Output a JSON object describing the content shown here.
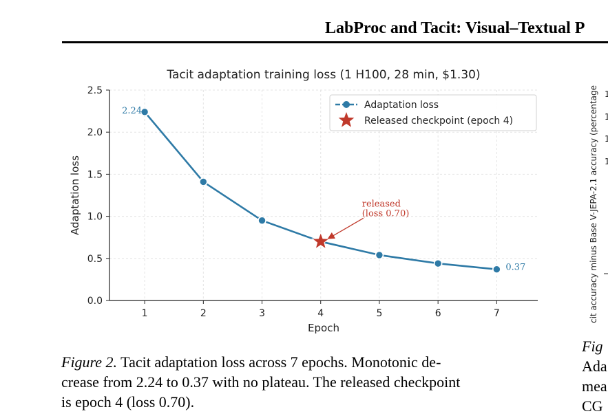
{
  "header": {
    "running_title": "LabProc and Tacit: Visual–Textual P"
  },
  "chart_data": {
    "type": "line",
    "title": "Tacit adaptation training loss (1 H100, 28 min, $1.30)",
    "xlabel": "Epoch",
    "ylabel": "Adaptation loss",
    "x": [
      1,
      2,
      3,
      4,
      5,
      6,
      7
    ],
    "xlim": [
      0.4,
      7.7
    ],
    "ylim": [
      0.0,
      2.5
    ],
    "xticks": [
      "1",
      "2",
      "3",
      "4",
      "5",
      "6",
      "7"
    ],
    "yticks": [
      "0.0",
      "0.5",
      "1.0",
      "1.5",
      "2.0",
      "2.5"
    ],
    "ytick_values": [
      0.0,
      0.5,
      1.0,
      1.5,
      2.0,
      2.5
    ],
    "grid": true,
    "legend_position": "top-right",
    "series": [
      {
        "name": "Adaptation loss",
        "values": [
          2.24,
          1.41,
          0.95,
          0.7,
          0.54,
          0.44,
          0.37
        ],
        "color": "#2e7aa6"
      }
    ],
    "checkpoint": {
      "name": "Released checkpoint (epoch 4)",
      "x": 4,
      "y": 0.7,
      "color": "#c0392b"
    },
    "annotations": {
      "first_value": "2.24",
      "last_value": "0.37",
      "released_line1": "released",
      "released_line2": "(loss 0.70)"
    }
  },
  "caption": {
    "label": "Figure 2.",
    "line1_rest": " Tacit adaptation loss across 7 epochs. Monotonic de-",
    "line2": "crease from 2.24 to 0.37 with no plateau. The released checkpoint",
    "line3": "is epoch 4 (loss 0.70)."
  },
  "right_panel": {
    "ylabel_partial": "cit accuracy minus Base V-JEPA-2.1 accuracy (percentage",
    "ticks_partial": [
      "1",
      "1",
      "1",
      "1"
    ],
    "caption_fragments": [
      "Fig",
      "Ada",
      "mea",
      "CG"
    ]
  }
}
